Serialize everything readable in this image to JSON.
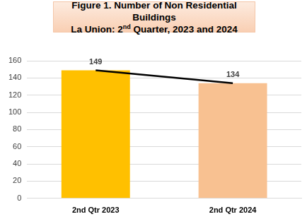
{
  "chart_data": {
    "type": "bar",
    "title": "Figure 1. Number of Non Residential Buildings\nLa Union: 2nd Quarter, 2023 and 2024",
    "categories": [
      "2nd Qtr 2023",
      "2nd Qtr 2024"
    ],
    "series": [
      {
        "type": "bar",
        "colors": [
          "#FFC000",
          "#F8C191"
        ],
        "values": [
          149,
          134
        ],
        "data_labels": true
      },
      {
        "type": "line",
        "color": "#000000",
        "values": [
          149,
          134
        ]
      }
    ],
    "ylim": [
      0,
      160
    ],
    "yticks": [
      0,
      20,
      40,
      60,
      80,
      100,
      120,
      140,
      160
    ],
    "grid": true
  }
}
